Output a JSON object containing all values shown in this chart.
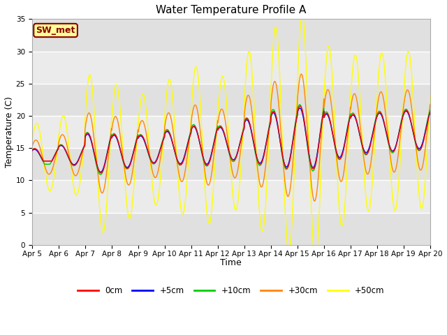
{
  "title": "Water Temperature Profile A",
  "xlabel": "Time",
  "ylabel": "Temperature (C)",
  "ylim": [
    0,
    35
  ],
  "background_color": "#f0f0f0",
  "plot_bg_color": "#e8e8e8",
  "annotation_text": "SW_met",
  "annotation_color": "#8b0000",
  "annotation_bg": "#ffff99",
  "annotation_border": "#8b0000",
  "tick_labels": [
    "Apr 5",
    "Apr 6",
    "Apr 7",
    "Apr 8",
    "Apr 9",
    "Apr 10",
    "Apr 11",
    "Apr 12",
    "Apr 13",
    "Apr 14",
    "Apr 15",
    "Apr 16",
    "Apr 17",
    "Apr 18",
    "Apr 19",
    "Apr 20"
  ],
  "legend_labels": [
    "0cm",
    "+5cm",
    "+10cm",
    "+30cm",
    "+50cm"
  ],
  "legend_colors": [
    "#ff0000",
    "#0000ff",
    "#00cc00",
    "#ff8800",
    "#ffff00"
  ],
  "series_colors": [
    "#ff0000",
    "#0000ff",
    "#00cc00",
    "#ff8800",
    "#ffff00"
  ],
  "series_linewidth": 1.0,
  "title_fontsize": 11,
  "axis_label_fontsize": 9,
  "tick_fontsize": 7.5,
  "legend_fontsize": 8.5
}
